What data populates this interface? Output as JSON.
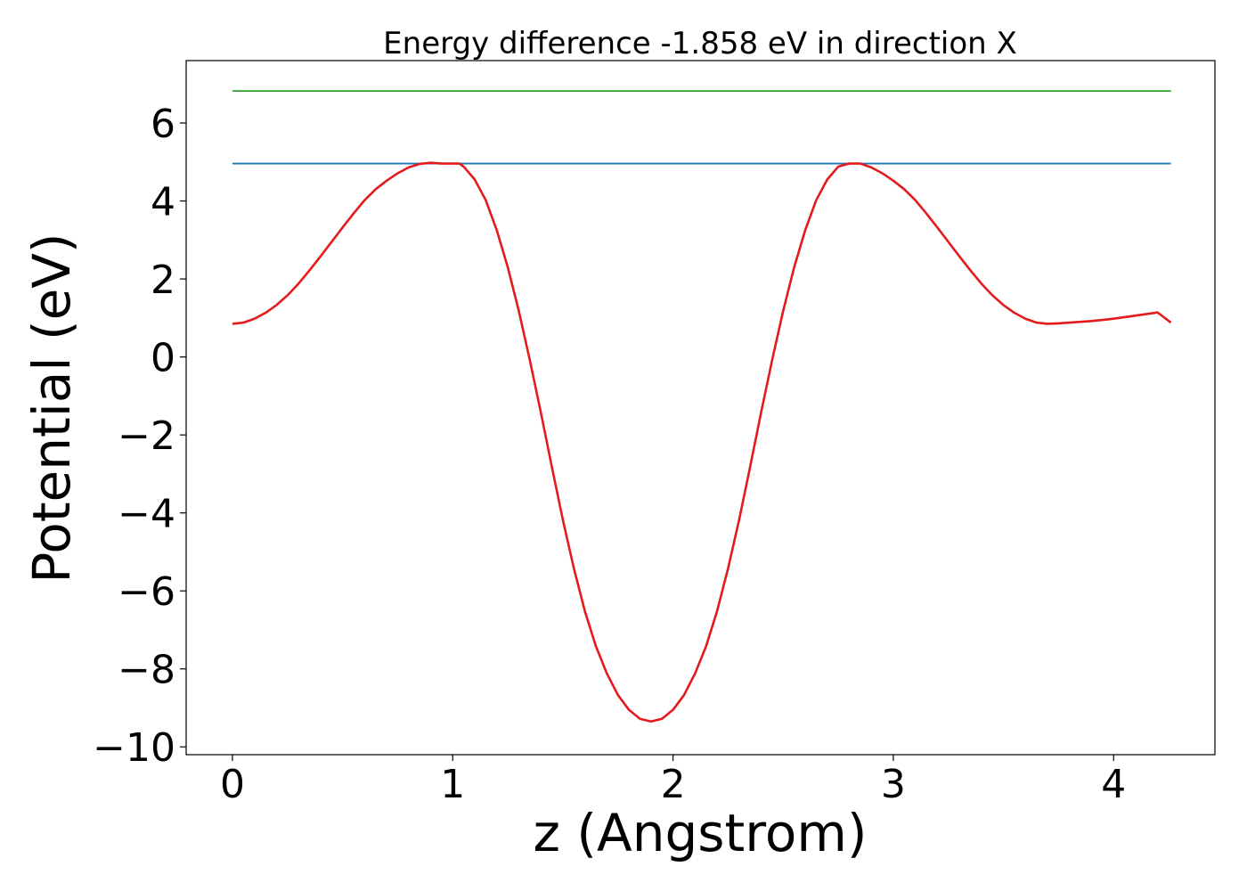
{
  "chart_data": {
    "type": "line",
    "title": "Energy difference -1.858 eV in direction X",
    "xlabel": "z (Angstrom)",
    "ylabel": "Potential (eV)",
    "xlim": [
      -0.21,
      4.46
    ],
    "ylim": [
      -10.2,
      7.6
    ],
    "xticks": [
      0,
      1,
      2,
      3,
      4
    ],
    "xtick_labels": [
      "0",
      "1",
      "2",
      "3",
      "4"
    ],
    "yticks": [
      6,
      4,
      2,
      0,
      -2,
      -4,
      -6,
      -8,
      -10
    ],
    "ytick_labels": [
      "6",
      "4",
      "2",
      "0",
      "−2",
      "−4",
      "−6",
      "−8",
      "−10"
    ],
    "grid": false,
    "legend": "none",
    "series": [
      {
        "color": "#2ca02c",
        "x": [
          0,
          4.26
        ],
        "y": [
          6.82,
          6.82
        ]
      },
      {
        "color": "#1f77b4",
        "x": [
          0,
          4.26
        ],
        "y": [
          4.96,
          4.96
        ]
      },
      {
        "color": "#e41a1c",
        "x": [
          0.0,
          0.05,
          0.1,
          0.15,
          0.2,
          0.25,
          0.3,
          0.35,
          0.4,
          0.45,
          0.5,
          0.55,
          0.6,
          0.65,
          0.7,
          0.75,
          0.8,
          0.85,
          0.9,
          0.95,
          1.0,
          1.03,
          1.05,
          1.1,
          1.15,
          1.2,
          1.25,
          1.3,
          1.35,
          1.4,
          1.45,
          1.5,
          1.55,
          1.6,
          1.65,
          1.7,
          1.75,
          1.8,
          1.85,
          1.9,
          1.95,
          2.0,
          2.05,
          2.1,
          2.15,
          2.2,
          2.25,
          2.3,
          2.35,
          2.4,
          2.45,
          2.5,
          2.55,
          2.6,
          2.65,
          2.7,
          2.75,
          2.8,
          2.85,
          2.9,
          2.95,
          3.0,
          3.05,
          3.1,
          3.15,
          3.2,
          3.25,
          3.3,
          3.35,
          3.4,
          3.45,
          3.5,
          3.55,
          3.6,
          3.65,
          3.7,
          3.75,
          3.8,
          3.85,
          3.9,
          3.95,
          4.0,
          4.05,
          4.1,
          4.15,
          4.2,
          4.26
        ],
        "y": [
          0.85,
          0.88,
          0.98,
          1.13,
          1.33,
          1.58,
          1.88,
          2.22,
          2.58,
          2.95,
          3.32,
          3.68,
          4.02,
          4.3,
          4.52,
          4.71,
          4.86,
          4.95,
          4.98,
          4.96,
          4.96,
          4.96,
          4.88,
          4.55,
          4.02,
          3.25,
          2.3,
          1.18,
          -0.08,
          -1.42,
          -2.82,
          -4.18,
          -5.42,
          -6.52,
          -7.42,
          -8.12,
          -8.67,
          -9.05,
          -9.28,
          -9.35,
          -9.28,
          -9.05,
          -8.67,
          -8.12,
          -7.42,
          -6.52,
          -5.42,
          -4.18,
          -2.82,
          -1.42,
          -0.08,
          1.18,
          2.3,
          3.25,
          4.02,
          4.55,
          4.88,
          4.96,
          4.96,
          4.86,
          4.71,
          4.52,
          4.3,
          4.02,
          3.68,
          3.32,
          2.95,
          2.58,
          2.22,
          1.88,
          1.58,
          1.33,
          1.13,
          0.98,
          0.88,
          0.85,
          0.86,
          0.88,
          0.9,
          0.92,
          0.95,
          0.98,
          1.02,
          1.06,
          1.1,
          1.14,
          0.88
        ]
      }
    ]
  }
}
